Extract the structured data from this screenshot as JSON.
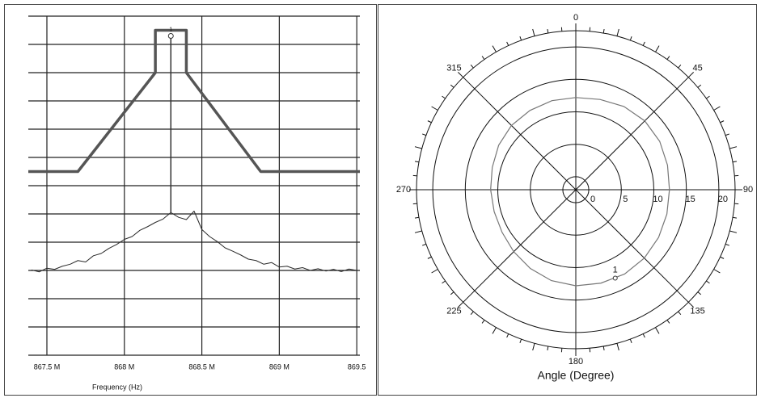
{
  "chart_data": [
    {
      "type": "line",
      "xlabel": "Frequency (Hz)",
      "xlim": [
        867.38,
        869.52
      ],
      "ylim": [
        0,
        12
      ],
      "xticks": [
        {
          "value": 867.5,
          "label": "867.5 M"
        },
        {
          "value": 868,
          "label": "868 M"
        },
        {
          "value": 868.5,
          "label": "868.5 M"
        },
        {
          "value": 869,
          "label": "869 M"
        },
        {
          "value": 869.5,
          "label": "869.5"
        }
      ],
      "yticks": [
        0,
        1,
        2,
        3,
        4,
        5,
        6,
        7,
        8,
        9,
        10,
        11,
        12
      ],
      "grid": true,
      "series": [
        {
          "color": "#555555",
          "x": [
            867.38,
            867.7,
            868.2,
            868.2,
            868.4,
            868.4,
            868.88,
            869.52
          ],
          "values": [
            6.5,
            6.5,
            10,
            11.5,
            11.5,
            10,
            6.5,
            6.5
          ]
        },
        {
          "color": "#2a2a2a",
          "x": [
            867.4,
            867.45,
            867.5,
            867.55,
            867.6,
            867.65,
            867.7,
            867.75,
            867.8,
            867.85,
            867.9,
            867.95,
            868.0,
            868.05,
            868.1,
            868.15,
            868.2,
            868.25,
            868.3,
            868.35,
            868.4,
            868.45,
            868.5,
            868.55,
            868.6,
            868.65,
            868.7,
            868.75,
            868.8,
            868.85,
            868.9,
            868.95,
            869.0,
            869.05,
            869.1,
            869.15,
            869.2,
            869.25,
            869.3,
            869.35,
            869.4,
            869.45,
            869.5
          ],
          "values": [
            3.02,
            2.95,
            3.08,
            3.04,
            3.15,
            3.22,
            3.35,
            3.3,
            3.52,
            3.6,
            3.78,
            3.92,
            4.1,
            4.2,
            4.42,
            4.55,
            4.7,
            4.82,
            5.05,
            4.88,
            4.8,
            5.1,
            4.45,
            4.2,
            4.02,
            3.8,
            3.68,
            3.55,
            3.4,
            3.35,
            3.22,
            3.28,
            3.12,
            3.15,
            3.05,
            3.1,
            3.0,
            3.06,
            2.98,
            3.04,
            2.96,
            3.05,
            3.0
          ]
        }
      ],
      "marker": {
        "label": "1",
        "x": 868.3,
        "y": 11.3
      }
    },
    {
      "type": "polar",
      "xlabel": "Angle (Degree)",
      "angle_ticks": [
        0,
        45,
        90,
        135,
        180,
        225,
        270,
        315
      ],
      "rlim": [
        -2,
        22.5
      ],
      "rticks": [
        0,
        5,
        10,
        15,
        20
      ],
      "series": [
        {
          "color": "#777777",
          "theta": [
            0,
            15,
            30,
            45,
            60,
            75,
            90,
            105,
            120,
            135,
            150,
            165,
            180,
            195,
            210,
            225,
            240,
            255,
            270,
            285,
            300,
            315,
            330,
            345,
            360
          ],
          "values": [
            12.2,
            12.4,
            12.8,
            13.0,
            12.9,
            12.6,
            12.4,
            12.5,
            12.7,
            12.9,
            13.0,
            12.9,
            12.8,
            12.5,
            12.0,
            11.5,
            11.1,
            11.0,
            11.1,
            11.3,
            11.7,
            12.0,
            12.1,
            12.2,
            12.2
          ]
        }
      ],
      "marker": {
        "label": "1",
        "theta": 156,
        "r": 12.9
      }
    }
  ]
}
